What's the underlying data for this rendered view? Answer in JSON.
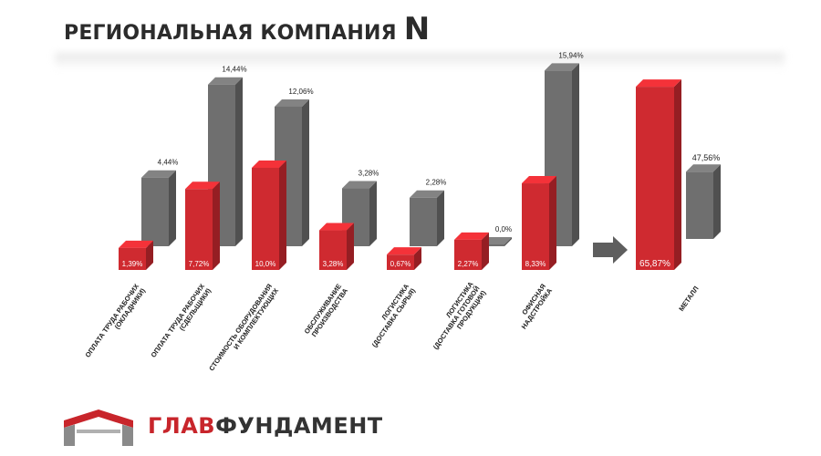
{
  "header": {
    "title_main": "РЕГИОНАЛЬНАЯ КОМПАНИЯ",
    "title_letter": "N"
  },
  "logo": {
    "part1": "ГЛАВ",
    "part2": "ФУНДАМЕНТ"
  },
  "colors": {
    "red": "#cf2a30",
    "gray": "#6f6f6f",
    "arrow": "#5e5e5e"
  },
  "chart_data": {
    "type": "bar",
    "title": "РЕГИОНАЛЬНАЯ КОМПАНИЯ N",
    "categories": [
      "ОПЛАТА ТРУДА РАБОЧИХ (ОКЛАДНИКИ)",
      "ОПЛАТА ТРУДА РАБОЧИХ (СДЕЛЬЩИКИ)",
      "СТОИМОСТЬ ОБОРУДОВАНИЯ И КОМПЛЕКТУЮЩИХ",
      "ОБСЛУЖИВАНИЕ ПРОИЗВОДСТВА",
      "ЛОГИСТИКА (ДОСТАВКА СЫРЬЯ)",
      "ЛОГИСТИКА (ДОСТАВКА ГОТОВОЙ ПРОДУКЦИИ)",
      "ОФИСНАЯ НАДСТРОЙКА",
      "МЕТАЛЛ"
    ],
    "category_lines": [
      [
        "ОПЛАТА ТРУДА РАБОЧИХ",
        "(ОКЛАДНИКИ)"
      ],
      [
        "ОПЛАТА ТРУДА РАБОЧИХ",
        "(СДЕЛЬЩИКИ)"
      ],
      [
        "СТОИМОСТЬ ОБОРУДОВАНИЯ",
        "И КОМПЛЕКТУЮЩИХ"
      ],
      [
        "ОБСЛУЖИВАНИЕ",
        "ПРОИЗВОДСТВА"
      ],
      [
        "ЛОГИСТИКА",
        "(ДОСТАВКА СЫРЬЯ)"
      ],
      [
        "ЛОГИСТИКА",
        "(ДОСТАВКА ГОТОВОЙ",
        "ПРОДУКЦИИ)"
      ],
      [
        "ОФИСНАЯ",
        "НАДСТРОЙКА"
      ],
      [
        "МЕТАЛЛ"
      ]
    ],
    "series": [
      {
        "color": "red",
        "values": [
          1.39,
          7.72,
          10.0,
          3.28,
          0.67,
          2.27,
          8.33,
          65.87
        ],
        "labels": [
          "1,39%",
          "7,72%",
          "10,0%",
          "3,28%",
          "0,67%",
          "2,27%",
          "8,33%",
          "65,87%"
        ]
      },
      {
        "color": "gray",
        "values": [
          4.44,
          14.44,
          12.06,
          3.28,
          2.28,
          0.0,
          15.94,
          47.56
        ],
        "labels": [
          "4,44%",
          "14,44%",
          "12,06%",
          "3,28%",
          "2,28%",
          "0,0%",
          "15,94%",
          "47,56%"
        ]
      }
    ],
    "annotations": [
      "arrow between ОФИСНАЯ НАДСТРОЙКА and МЕТАЛЛ"
    ],
    "grid": false,
    "legend": "none"
  }
}
